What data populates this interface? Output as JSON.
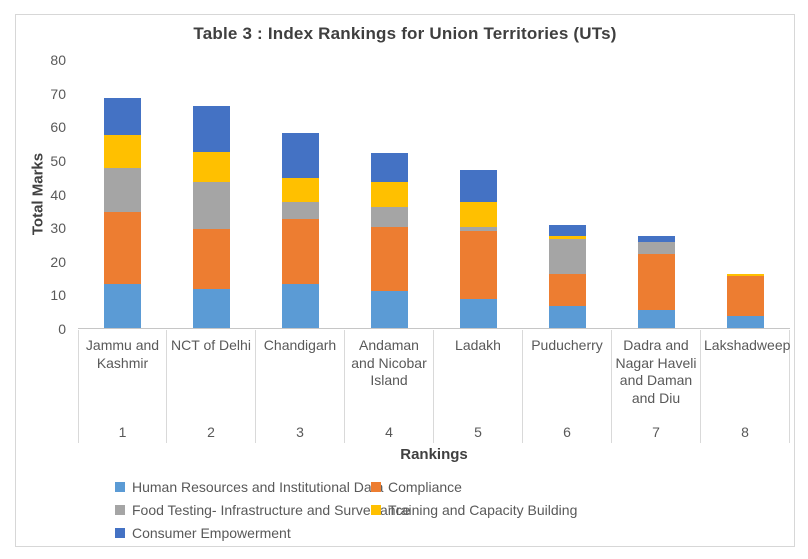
{
  "title": "Table 3 : Index Rankings for Union Territories (UTs)",
  "chart_data": {
    "type": "bar",
    "stacked": true,
    "title": "Table 3 : Index Rankings for Union Territories (UTs)",
    "xlabel": "Rankings",
    "ylabel": "Total Marks",
    "ylim": [
      0,
      80
    ],
    "yticks": [
      0,
      10,
      20,
      30,
      40,
      50,
      60,
      70,
      80
    ],
    "grid": false,
    "legend_position": "bottom",
    "categories": [
      "Jammu and Kashmir",
      "NCT of Delhi",
      "Chandigarh",
      "Andaman and Nicobar Island",
      "Ladakh",
      "Puducherry",
      "Dadra and Nagar Haveli and Daman and Diu",
      "Lakshadweep"
    ],
    "rankings": [
      "1",
      "2",
      "3",
      "4",
      "5",
      "6",
      "7",
      "8"
    ],
    "series": [
      {
        "name": "Human Resources and Institutional Data",
        "color": "#5B9BD5",
        "values": [
          13,
          11.5,
          13,
          11,
          8.5,
          6.5,
          5.5,
          3.5
        ]
      },
      {
        "name": "Compliance",
        "color": "#ED7D31",
        "values": [
          21.5,
          18,
          19.5,
          19,
          20.5,
          9.5,
          16.5,
          12
        ]
      },
      {
        "name": "Food Testing- Infrastructure and Surveillance",
        "color": "#A5A5A5",
        "values": [
          13,
          14,
          5,
          6,
          1,
          10.5,
          3.5,
          0
        ]
      },
      {
        "name": "Training and Capacity Building",
        "color": "#FFC000",
        "values": [
          10,
          9,
          7,
          7.5,
          7.5,
          1,
          0,
          0.5
        ]
      },
      {
        "name": "Consumer Empowerment",
        "color": "#4472C4",
        "values": [
          11,
          13.5,
          13.5,
          8.5,
          9.5,
          3,
          2,
          0
        ]
      }
    ]
  }
}
